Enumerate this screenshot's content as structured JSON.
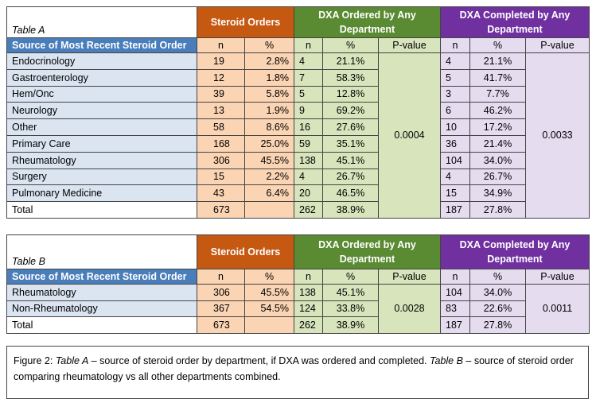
{
  "table_a": {
    "label": "Table A",
    "headers": {
      "steroid": "Steroid Orders",
      "ordered": "DXA Ordered by Any Department",
      "completed": "DXA Completed by Any Department"
    },
    "subheaders": [
      "Source of Most Recent Steroid Order",
      "n",
      "%",
      "n",
      "%",
      "P-value",
      "n",
      "%",
      "P-value"
    ],
    "rows": [
      [
        "Endocrinology",
        "19",
        "2.8%",
        "4",
        "21.1%",
        "4",
        "21.1%"
      ],
      [
        "Gastroenterology",
        "12",
        "1.8%",
        "7",
        "58.3%",
        "5",
        "41.7%"
      ],
      [
        "Hem/Onc",
        "39",
        "5.8%",
        "5",
        "12.8%",
        "3",
        "7.7%"
      ],
      [
        "Neurology",
        "13",
        "1.9%",
        "9",
        "69.2%",
        "6",
        "46.2%"
      ],
      [
        "Other",
        "58",
        "8.6%",
        "16",
        "27.6%",
        "10",
        "17.2%"
      ],
      [
        "Primary Care",
        "168",
        "25.0%",
        "59",
        "35.1%",
        "36",
        "21.4%"
      ],
      [
        "Rheumatology",
        "306",
        "45.5%",
        "138",
        "45.1%",
        "104",
        "34.0%"
      ],
      [
        "Surgery",
        "15",
        "2.2%",
        "4",
        "26.7%",
        "4",
        "26.7%"
      ],
      [
        "Pulmonary Medicine",
        "43",
        "6.4%",
        "20",
        "46.5%",
        "15",
        "34.9%"
      ],
      [
        "Total",
        "673",
        "",
        "262",
        "38.9%",
        "187",
        "27.8%"
      ]
    ],
    "p_ordered": "0.0004",
    "p_completed": "0.0033"
  },
  "table_b": {
    "label": "Table B",
    "headers": {
      "steroid": "Steroid Orders",
      "ordered": "DXA Ordered by Any Department",
      "completed": "DXA Completed by Any Department"
    },
    "subheaders": [
      "Source of Most Recent Steroid Order",
      "n",
      "%",
      "n",
      "%",
      "P-value",
      "n",
      "%",
      "P-value"
    ],
    "rows": [
      [
        "Rheumatology",
        "306",
        "45.5%",
        "138",
        "45.1%",
        "104",
        "34.0%"
      ],
      [
        "Non-Rheumatology",
        "367",
        "54.5%",
        "124",
        "33.8%",
        "83",
        "22.6%"
      ],
      [
        "Total",
        "673",
        "",
        "262",
        "38.9%",
        "187",
        "27.8%"
      ]
    ],
    "p_ordered": "0.0028",
    "p_completed": "0.0011"
  },
  "caption": [
    "Figure 2: ",
    "Table A",
    " – source of steroid order by department, if DXA was ordered and completed. ",
    "Table B",
    " – source of steroid order comparing rheumatology vs all other departments combined."
  ]
}
